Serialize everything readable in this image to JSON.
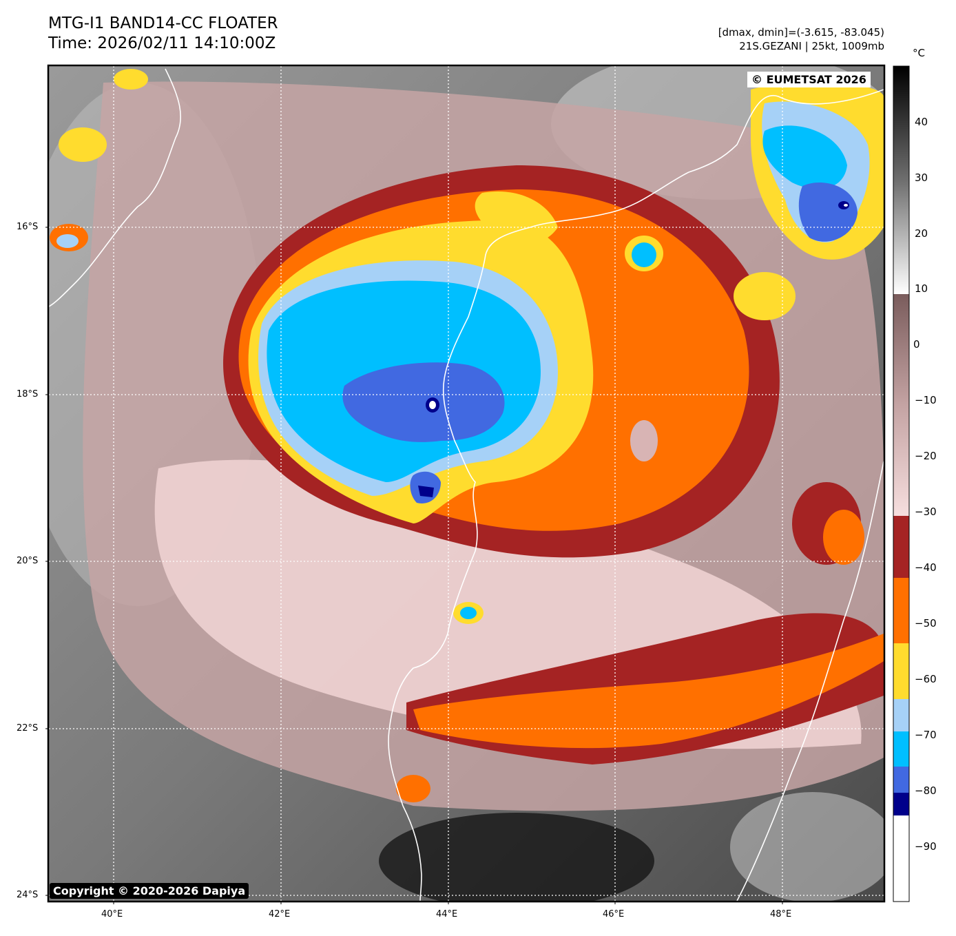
{
  "header": {
    "title_line1": "MTG-I1 BAND14-CC FLOATER",
    "title_line2": "Time: 2026/02/11 14:10:00Z",
    "stats_line": "[dmax, dmin]=(-3.615, -83.045)",
    "storm_line": "21S.GEZANI | 25kt, 1009mb"
  },
  "colorbar": {
    "unit": "°C",
    "ticks": [
      "40",
      "30",
      "20",
      "10",
      "0",
      "−10",
      "−20",
      "−30",
      "−40",
      "−50",
      "−60",
      "−70",
      "−80",
      "−90"
    ],
    "bands": [
      {
        "from": 10,
        "to": 50,
        "type": "gray-dark"
      },
      {
        "from": -30,
        "to": 10,
        "type": "brown-pink"
      },
      {
        "from": -41,
        "to": -30,
        "color": "#A52323"
      },
      {
        "from": -52.5,
        "to": -41,
        "color": "#FF7000"
      },
      {
        "from": -62.5,
        "to": -52.5,
        "color": "#FFDC2E"
      },
      {
        "from": -70.5,
        "to": -62.5,
        "color": "#A6D1F7"
      },
      {
        "from": -78.5,
        "to": -70.5,
        "color": "#00BFFF"
      },
      {
        "from": -83.5,
        "to": -78.5,
        "color": "#4169E1"
      },
      {
        "from": -87.5,
        "to": -83.5,
        "color": "#00008B"
      },
      {
        "from": -100,
        "to": -87.5,
        "color": "#FFFFFF"
      }
    ]
  },
  "axes": {
    "lat_labels": [
      "16°S",
      "18°S",
      "20°S",
      "22°S",
      "24°S"
    ],
    "lon_labels": [
      "40°E",
      "42°E",
      "44°E",
      "46°E",
      "48°E"
    ]
  },
  "watermarks": {
    "eumetsat": "© EUMETSAT 2026",
    "copyright": "Copyright © 2020-2026 Dapiya"
  },
  "colors": {
    "dark_red": "#A52323",
    "orange": "#FF7000",
    "yellow": "#FFDC2E",
    "light_blue": "#A6D1F7",
    "cyan": "#00BFFF",
    "royal_blue": "#4169E1",
    "navy": "#00008B"
  }
}
